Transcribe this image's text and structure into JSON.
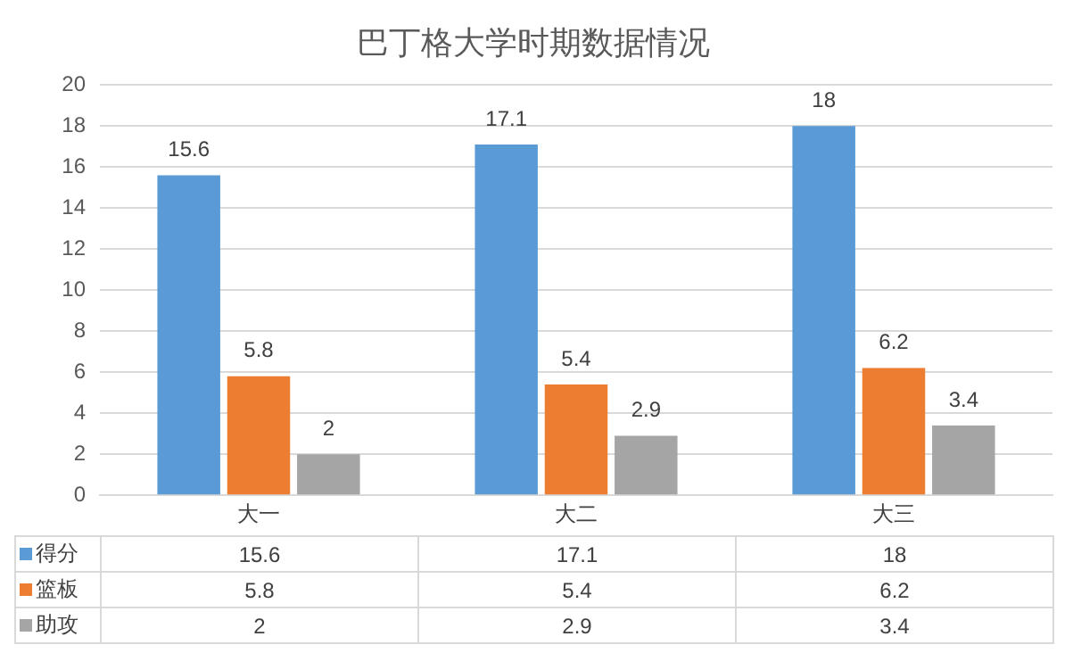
{
  "chart_data": {
    "type": "bar",
    "title": "巴丁格大学时期数据情况",
    "categories": [
      "大一",
      "大二",
      "大三"
    ],
    "series": [
      {
        "name": "得分",
        "color": "#5b9bd5",
        "values": [
          15.6,
          17.1,
          18
        ]
      },
      {
        "name": "篮板",
        "color": "#ed7d31",
        "values": [
          5.8,
          5.4,
          6.2
        ]
      },
      {
        "name": "助攻",
        "color": "#a5a5a5",
        "values": [
          2,
          2.9,
          3.4
        ]
      }
    ],
    "annotations": [
      "15.6",
      "17.1",
      "18",
      "5.8",
      "5.4",
      "6.2",
      "2",
      "2.9",
      "3.4"
    ],
    "ylim": [
      0,
      20
    ],
    "yticks": [
      0,
      2,
      4,
      6,
      8,
      10,
      12,
      14,
      16,
      18,
      20
    ],
    "grid": "y",
    "legend": "bottom",
    "data_labels": true
  }
}
